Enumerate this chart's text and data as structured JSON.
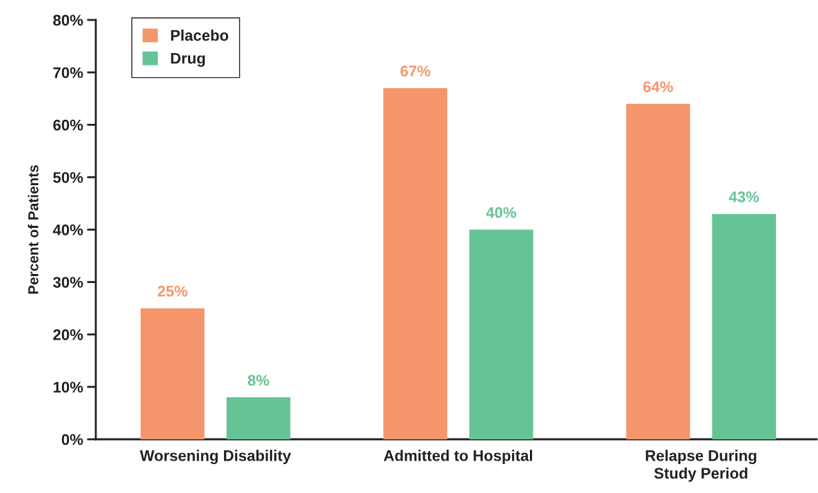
{
  "chart_data": {
    "type": "bar",
    "ylabel": "Percent of Patients",
    "categories": [
      "Worsening Disability",
      "Admitted to Hospital",
      "Relapse During\nStudy Period"
    ],
    "series": [
      {
        "name": "Placebo",
        "color": "#f5956b",
        "values": [
          25,
          67,
          64
        ],
        "value_labels": [
          "25%",
          "67%",
          "64%"
        ]
      },
      {
        "name": "Drug",
        "color": "#66c395",
        "values": [
          8,
          40,
          43
        ],
        "value_labels": [
          "8%",
          "40%",
          "43%"
        ]
      }
    ],
    "ylim": [
      0,
      80
    ],
    "yticks": [
      {
        "value": 0,
        "label": "0%"
      },
      {
        "value": 10,
        "label": "10%"
      },
      {
        "value": 20,
        "label": "20%"
      },
      {
        "value": 30,
        "label": "30%"
      },
      {
        "value": 40,
        "label": "40%"
      },
      {
        "value": 50,
        "label": "50%"
      },
      {
        "value": 60,
        "label": "60%"
      },
      {
        "value": 70,
        "label": "70%"
      },
      {
        "value": 80,
        "label": "80%"
      }
    ],
    "legend": "top left"
  }
}
